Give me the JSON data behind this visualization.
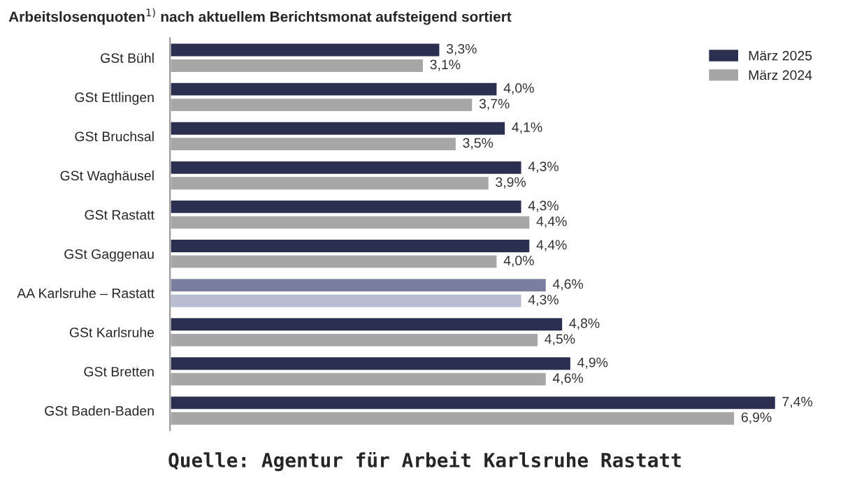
{
  "chart_data": {
    "type": "bar",
    "orientation": "horizontal",
    "title": "Arbeitslosenquoten$^{1)}$ nach aktuellem Berichtsmonat aufsteigend sortiert",
    "categories": [
      "GSt Bühl",
      "GSt Ettlingen",
      "GSt Bruchsal",
      "GSt Waghäusel",
      "GSt Rastatt",
      "GSt Gaggenau",
      "AA Karlsruhe – Rastatt",
      "GSt Karlsruhe",
      "GSt Bretten",
      "GSt Baden-Baden"
    ],
    "series": [
      {
        "name": "März 2025",
        "color": "#2b3050",
        "colors": [
          "#2b3050",
          "#2b3050",
          "#2b3050",
          "#2b3050",
          "#2b3050",
          "#2b3050",
          "#7a7f9f",
          "#2b3050",
          "#2b3050",
          "#2b3050"
        ],
        "values": [
          3.3,
          4.0,
          4.1,
          4.3,
          4.3,
          4.4,
          4.6,
          4.8,
          4.9,
          7.4
        ],
        "value_labels": [
          "3,3%",
          "4,0%",
          "4,1%",
          "4,3%",
          "4,3%",
          "4,4%",
          "4,6%",
          "4,8%",
          "4,9%",
          "7,4%"
        ]
      },
      {
        "name": "März 2024",
        "color": "#a6a6a6",
        "colors": [
          "#a6a6a6",
          "#a6a6a6",
          "#a6a6a6",
          "#a6a6a6",
          "#a6a6a6",
          "#a6a6a6",
          "#b8bdd0",
          "#a6a6a6",
          "#a6a6a6",
          "#a6a6a6"
        ],
        "values": [
          3.1,
          3.7,
          3.5,
          3.9,
          4.4,
          4.0,
          4.3,
          4.5,
          4.6,
          6.9
        ],
        "value_labels": [
          "3,1%",
          "3,7%",
          "3,5%",
          "3,9%",
          "4,4%",
          "4,0%",
          "4,3%",
          "4,5%",
          "4,6%",
          "6,9%"
        ]
      }
    ],
    "relative": false,
    "legend": "top right",
    "annotations": [
      "Quelle: Agentur für Arbeit Karlsruhe Rastatt"
    ]
  }
}
